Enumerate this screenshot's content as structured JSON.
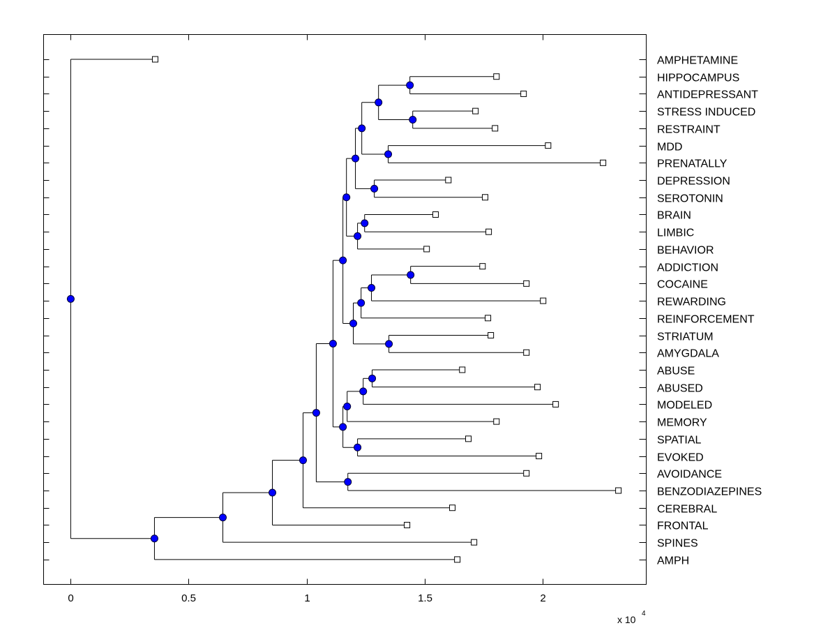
{
  "chart_data": {
    "type": "dendrogram",
    "title": "",
    "xlabel": "",
    "ylabel": "",
    "xlim": [
      -0.115,
      2.44
    ],
    "x_exponent_label": "x 10",
    "x_exponent_power": "4",
    "xticks": [
      {
        "value": 0,
        "label": "0"
      },
      {
        "value": 0.5,
        "label": "0.5"
      },
      {
        "value": 1,
        "label": "1"
      },
      {
        "value": 1.5,
        "label": "1.5"
      },
      {
        "value": 2,
        "label": "2"
      }
    ],
    "leaf_labels": [
      "AMPHETAMINE",
      "HIPPOCAMPUS",
      "ANTIDEPRESSANT",
      "STRESS INDUCED",
      "RESTRAINT",
      "MDD",
      "PRENATALLY",
      "DEPRESSION",
      "SEROTONIN",
      "BRAIN",
      "LIMBIC",
      "BEHAVIOR",
      "ADDICTION",
      "COCAINE",
      "REWARDING",
      "REINFORCEMENT",
      "STRIATUM",
      "AMYGDALA",
      "ABUSE",
      "ABUSED",
      "MODELED",
      "MEMORY",
      "SPATIAL",
      "EVOKED",
      "AVOIDANCE",
      "BENZODIAZEPINES",
      "CEREBRAL",
      "FRONTAL",
      "SPINES",
      "AMPH"
    ],
    "node_color": "#0000ff",
    "tree": {
      "h": 0,
      "c": [
        {
          "leaf": 0,
          "h": 0.358
        },
        {
          "h": 0.355,
          "c": [
            {
              "h": 0.645,
              "c": [
                {
                  "h": 0.855,
                  "c": [
                    {
                      "h": 0.985,
                      "c": [
                        {
                          "h": 1.041,
                          "c": [
                            {
                              "h": 1.112,
                              "c": [
                                {
                                  "h": 1.154,
                                  "c": [
                                    {
                                      "h": 1.169,
                                      "c": [
                                        {
                                          "h": 1.207,
                                          "c": [
                                            {
                                              "h": 1.234,
                                              "c": [
                                                {
                                                  "h": 1.305,
                                                  "c": [
                                                    {
                                                      "h": 1.438,
                                                      "c": [
                                                        {
                                                          "leaf": 1,
                                                          "h": 1.805
                                                        },
                                                        {
                                                          "leaf": 2,
                                                          "h": 1.92
                                                        }
                                                      ]
                                                    },
                                                    {
                                                      "h": 1.45,
                                                      "c": [
                                                        {
                                                          "leaf": 3,
                                                          "h": 1.716
                                                        },
                                                        {
                                                          "leaf": 4,
                                                          "h": 1.799
                                                        }
                                                      ]
                                                    }
                                                  ]
                                                },
                                                {
                                                  "h": 1.346,
                                                  "c": [
                                                    {
                                                      "leaf": 5,
                                                      "h": 2.024
                                                    },
                                                    {
                                                      "leaf": 6,
                                                      "h": 2.257
                                                    }
                                                  ]
                                                }
                                              ]
                                            },
                                            {
                                              "h": 1.287,
                                              "c": [
                                                {
                                                  "leaf": 7,
                                                  "h": 1.601
                                                },
                                                {
                                                  "leaf": 8,
                                                  "h": 1.757
                                                }
                                              ]
                                            }
                                          ]
                                        },
                                        {
                                          "h": 1.216,
                                          "c": [
                                            {
                                              "h": 1.246,
                                              "c": [
                                                {
                                                  "leaf": 9,
                                                  "h": 1.547
                                                },
                                                {
                                                  "leaf": 10,
                                                  "h": 1.772
                                                }
                                              ]
                                            },
                                            {
                                              "leaf": 11,
                                              "h": 1.509
                                            }
                                          ]
                                        }
                                      ]
                                    },
                                    {
                                      "h": 1.198,
                                      "c": [
                                        {
                                          "h": 1.231,
                                          "c": [
                                            {
                                              "h": 1.275,
                                              "c": [
                                                {
                                                  "h": 1.441,
                                                  "c": [
                                                    {
                                                      "leaf": 12,
                                                      "h": 1.746
                                                    },
                                                    {
                                                      "leaf": 13,
                                                      "h": 1.932
                                                    }
                                                  ]
                                                },
                                                {
                                                  "leaf": 14,
                                                  "h": 2.003
                                                }
                                              ]
                                            },
                                            {
                                              "leaf": 15,
                                              "h": 1.769
                                            }
                                          ]
                                        },
                                        {
                                          "h": 1.349,
                                          "c": [
                                            {
                                              "leaf": 16,
                                              "h": 1.781
                                            },
                                            {
                                              "leaf": 17,
                                              "h": 1.932
                                            }
                                          ]
                                        }
                                      ]
                                    }
                                  ]
                                },
                                {
                                  "h": 1.154,
                                  "c": [
                                    {
                                      "h": 1.172,
                                      "c": [
                                        {
                                          "h": 1.24,
                                          "c": [
                                            {
                                              "h": 1.278,
                                              "c": [
                                                {
                                                  "leaf": 18,
                                                  "h": 1.66
                                                },
                                                {
                                                  "leaf": 19,
                                                  "h": 1.979
                                                }
                                              ]
                                            },
                                            {
                                              "leaf": 20,
                                              "h": 2.056
                                            }
                                          ]
                                        },
                                        {
                                          "leaf": 21,
                                          "h": 1.805
                                        }
                                      ]
                                    },
                                    {
                                      "h": 1.216,
                                      "c": [
                                        {
                                          "leaf": 22,
                                          "h": 1.686
                                        },
                                        {
                                          "leaf": 23,
                                          "h": 1.985
                                        }
                                      ]
                                    }
                                  ]
                                }
                              ]
                            },
                            {
                              "h": 1.175,
                              "c": [
                                {
                                  "leaf": 24,
                                  "h": 1.932
                                },
                                {
                                  "leaf": 25,
                                  "h": 2.322
                                }
                              ]
                            }
                          ]
                        },
                        {
                          "leaf": 26,
                          "h": 1.618
                        }
                      ]
                    },
                    {
                      "leaf": 27,
                      "h": 1.426
                    }
                  ]
                },
                {
                  "leaf": 28,
                  "h": 1.71
                }
              ]
            },
            {
              "leaf": 29,
              "h": 1.639
            }
          ]
        }
      ]
    }
  }
}
